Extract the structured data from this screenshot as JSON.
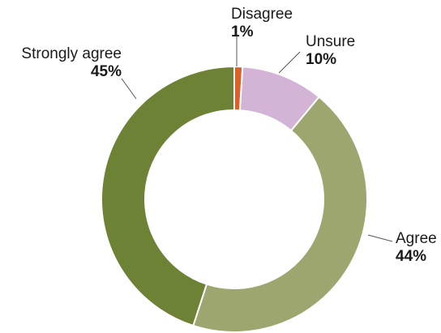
{
  "chart_data": {
    "type": "pie",
    "variant": "donut",
    "categories": [
      "Disagree",
      "Unsure",
      "Agree",
      "Strongly agree"
    ],
    "values": [
      1,
      10,
      44,
      45
    ],
    "labels": [
      "1%",
      "10%",
      "44%",
      "45%"
    ],
    "colors": [
      "#d9622b",
      "#d3b3d6",
      "#9ca66e",
      "#6e8236"
    ],
    "legend": "none",
    "slice_order": "clockwise from top"
  }
}
